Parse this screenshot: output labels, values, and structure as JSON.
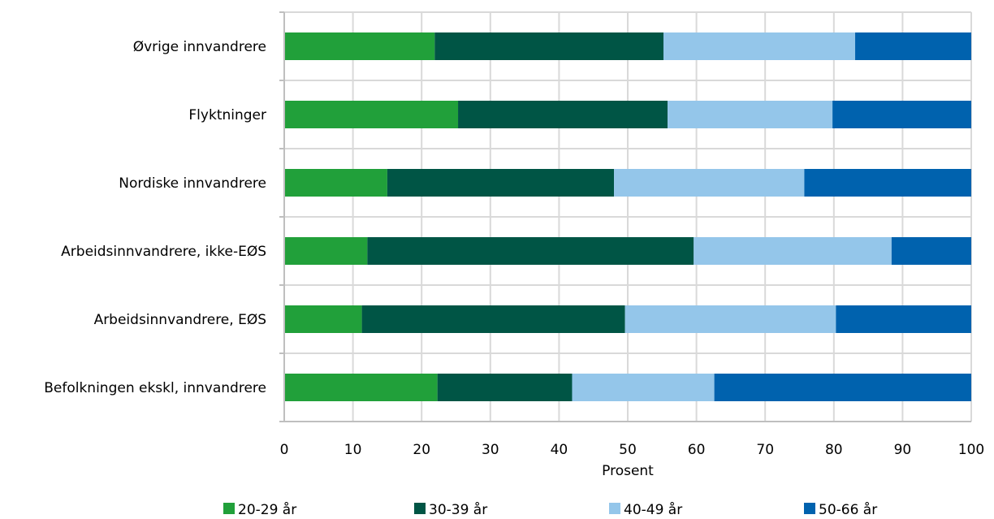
{
  "chart_data": {
    "type": "bar",
    "orientation": "horizontal",
    "stacked": true,
    "categories": [
      "Øvrige innvandrere",
      "Flyktninger",
      "Nordiske innvandrere",
      "Arbeidsinnvandrere, ikke-EØS",
      "Arbeidsinnvandrere, EØS",
      "Befolkningen ekskl, innvandrere"
    ],
    "series": [
      {
        "name": "20-29 år",
        "color": "#21a03a",
        "values": [
          21.9,
          25.3,
          15.0,
          12.1,
          11.3,
          22.3
        ]
      },
      {
        "name": "30-39 år",
        "color": "#005545",
        "values": [
          33.3,
          30.5,
          33.0,
          47.5,
          38.3,
          19.6
        ]
      },
      {
        "name": "40-49 år",
        "color": "#94c6ea",
        "values": [
          27.9,
          24.0,
          27.7,
          28.8,
          30.7,
          20.7
        ]
      },
      {
        "name": "50-66 år",
        "color": "#0062ae",
        "values": [
          16.9,
          20.2,
          24.3,
          11.6,
          19.7,
          37.4
        ]
      }
    ],
    "xlabel": "Prosent",
    "ylabel": "",
    "xlim": [
      0,
      100
    ],
    "xticks": [
      "0",
      "10",
      "20",
      "30",
      "40",
      "50",
      "60",
      "70",
      "80",
      "90",
      "100"
    ],
    "grid": true,
    "legend_position": "bottom"
  }
}
